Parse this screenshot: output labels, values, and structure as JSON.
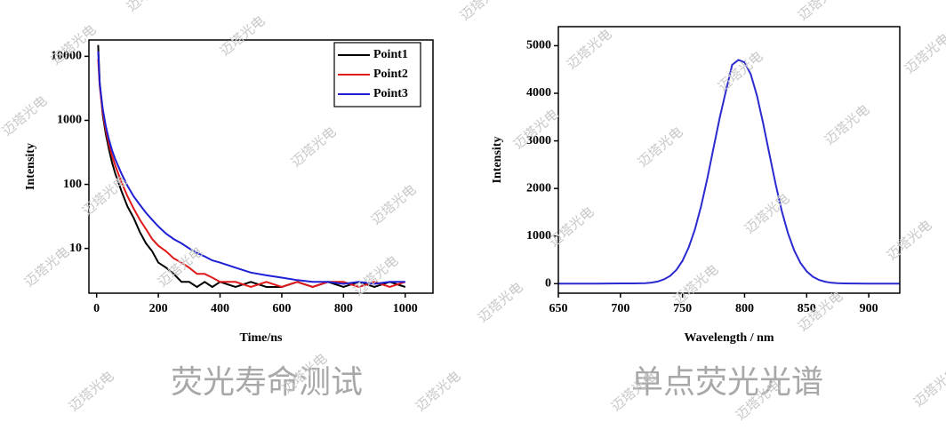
{
  "watermark": "迈塔光电",
  "chart_data": [
    {
      "type": "line",
      "caption": "荧光寿命测试",
      "xlabel": "Time/ns",
      "ylabel": "Intensity",
      "log_scale_y": true,
      "legend": "upper right",
      "xlim": [
        -25,
        1090
      ],
      "xticks": [
        0,
        200,
        400,
        600,
        800,
        1000
      ],
      "ylim": [
        2,
        18000
      ],
      "yticks": [
        10,
        100,
        1000,
        10000
      ],
      "x": [
        5,
        10,
        20,
        30,
        40,
        50,
        60,
        80,
        100,
        120,
        140,
        160,
        180,
        200,
        225,
        250,
        275,
        300,
        325,
        350,
        375,
        400,
        450,
        500,
        550,
        600,
        650,
        700,
        750,
        800,
        850,
        900,
        950,
        1000
      ],
      "series": [
        {
          "name": "Point1",
          "color": "#000000",
          "values": [
            15000,
            4000,
            1200,
            600,
            350,
            220,
            150,
            80,
            45,
            30,
            18,
            12,
            9,
            6,
            5,
            4,
            3,
            3,
            2.5,
            3,
            2.5,
            3,
            2.5,
            3,
            2.5,
            2.5,
            3,
            2.5,
            3,
            2.5,
            3,
            2.5,
            3,
            2.5
          ]
        },
        {
          "name": "Point2",
          "color": "#e0191a",
          "values": [
            9000,
            3500,
            1300,
            700,
            420,
            280,
            200,
            110,
            65,
            42,
            28,
            20,
            14,
            11,
            9,
            7,
            6,
            5,
            4,
            4,
            3.5,
            3,
            3,
            2.5,
            3,
            2.5,
            3,
            2.5,
            3,
            3,
            2.5,
            3,
            2.5,
            3
          ]
        },
        {
          "name": "Point3",
          "color": "#1f1fd6",
          "values": [
            12000,
            3800,
            1500,
            800,
            500,
            340,
            250,
            150,
            95,
            65,
            48,
            36,
            28,
            22,
            17,
            14,
            12,
            10,
            8.5,
            7.5,
            6.5,
            6,
            5,
            4.2,
            3.8,
            3.5,
            3.2,
            3,
            3,
            2.8,
            3,
            2.8,
            3,
            3
          ]
        }
      ]
    },
    {
      "type": "line",
      "caption": "单点荧光光谱",
      "xlabel": "Wavelength / nm",
      "ylabel": "Intensity",
      "color": "#2a2ad0",
      "xlim": [
        650,
        925
      ],
      "xticks": [
        650,
        700,
        750,
        800,
        850,
        900
      ],
      "ylim": [
        -200,
        5400
      ],
      "yticks": [
        0,
        1000,
        2000,
        3000,
        4000,
        5000
      ],
      "x": [
        650,
        660,
        670,
        680,
        690,
        700,
        710,
        715,
        720,
        725,
        730,
        735,
        740,
        745,
        750,
        755,
        760,
        765,
        770,
        775,
        780,
        785,
        790,
        795,
        800,
        805,
        810,
        815,
        820,
        825,
        830,
        835,
        840,
        845,
        850,
        855,
        860,
        865,
        870,
        875,
        880,
        890,
        900,
        910,
        925
      ],
      "values": [
        0,
        0,
        0,
        2,
        3,
        5,
        6,
        8,
        10,
        22,
        45,
        89,
        163,
        288,
        480,
        762,
        1140,
        1632,
        2214,
        2851,
        3487,
        4050,
        4600,
        4700,
        4650,
        4400,
        3948,
        3364,
        2721,
        2091,
        1527,
        1058,
        696,
        435,
        259,
        145,
        78,
        40,
        19,
        10,
        5,
        3,
        2,
        0,
        0
      ]
    }
  ]
}
